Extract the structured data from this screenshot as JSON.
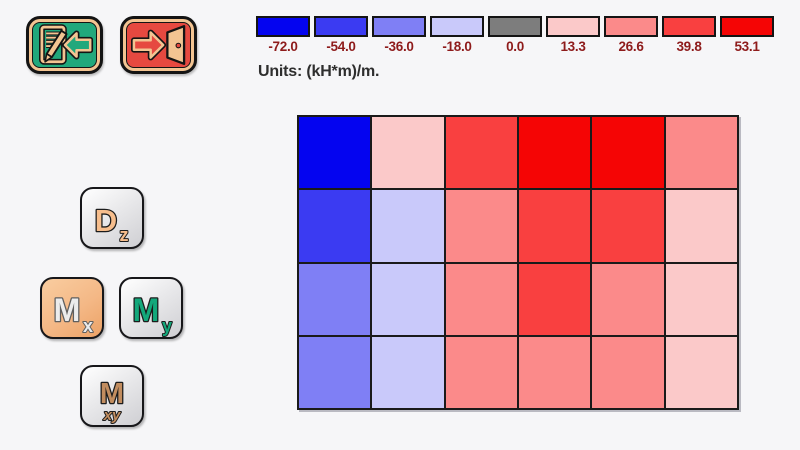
{
  "window": {
    "background": "#f6f6f8"
  },
  "toolbar": {
    "edit_back_button": {
      "icon": "edit-back-icon",
      "face_color": "#21a87c"
    },
    "exit_button": {
      "icon": "exit-door-icon",
      "face_color": "#e64940"
    }
  },
  "legend": {
    "units_label": "Units: (kH*m)/m.",
    "label_color": "#8e1b1b",
    "entries": [
      {
        "value": "-72.0",
        "color": "#0404f0"
      },
      {
        "value": "-54.0",
        "color": "#3b3bf2"
      },
      {
        "value": "-36.0",
        "color": "#7f7ff5"
      },
      {
        "value": "-18.0",
        "color": "#c9c9fa"
      },
      {
        "value": "0.0",
        "color": "#7d7d7d"
      },
      {
        "value": "13.3",
        "color": "#fbc9c9"
      },
      {
        "value": "26.6",
        "color": "#fb8a8a"
      },
      {
        "value": "39.8",
        "color": "#f94040"
      },
      {
        "value": "53.1",
        "color": "#f50505"
      }
    ]
  },
  "view_buttons": {
    "dz": {
      "main": "D",
      "sub": "z",
      "letter_color": "#f6bd8c",
      "active": false
    },
    "mx": {
      "main": "M",
      "sub": "x",
      "letter_color": "#ececec",
      "active": true
    },
    "my": {
      "main": "M",
      "sub": "y",
      "letter_color": "#13a87b",
      "active": false
    },
    "mxy": {
      "main": "M",
      "sub": "xy",
      "letter_color": "#c28d5f",
      "active": false
    }
  },
  "chart_data": {
    "type": "heatmap",
    "title": "",
    "units": "(kH*m)/m.",
    "rows": 4,
    "cols": 6,
    "legend_values": [
      -72.0,
      -54.0,
      -36.0,
      -18.0,
      0.0,
      13.3,
      26.6,
      39.8,
      53.1
    ],
    "legend_colors": [
      "#0404f0",
      "#3b3bf2",
      "#7f7ff5",
      "#c9c9fa",
      "#7d7d7d",
      "#fbc9c9",
      "#fb8a8a",
      "#f94040",
      "#f50505"
    ],
    "cell_values": [
      [
        -72.0,
        13.3,
        39.8,
        53.1,
        53.1,
        26.6
      ],
      [
        -54.0,
        -18.0,
        26.6,
        39.8,
        39.8,
        13.3
      ],
      [
        -36.0,
        -18.0,
        26.6,
        39.8,
        26.6,
        13.3
      ],
      [
        -36.0,
        -18.0,
        26.6,
        26.6,
        26.6,
        13.3
      ]
    ],
    "cell_colors": [
      [
        "#0404f0",
        "#fbc9c9",
        "#f94040",
        "#f50505",
        "#f50505",
        "#fb8a8a"
      ],
      [
        "#3b3bf2",
        "#c9c9fa",
        "#fb8a8a",
        "#f94040",
        "#f94040",
        "#fbc9c9"
      ],
      [
        "#7f7ff5",
        "#c9c9fa",
        "#fb8a8a",
        "#f94040",
        "#fb8a8a",
        "#fbc9c9"
      ],
      [
        "#7f7ff5",
        "#c9c9fa",
        "#fb8a8a",
        "#fb8a8a",
        "#fb8a8a",
        "#fbc9c9"
      ]
    ]
  }
}
